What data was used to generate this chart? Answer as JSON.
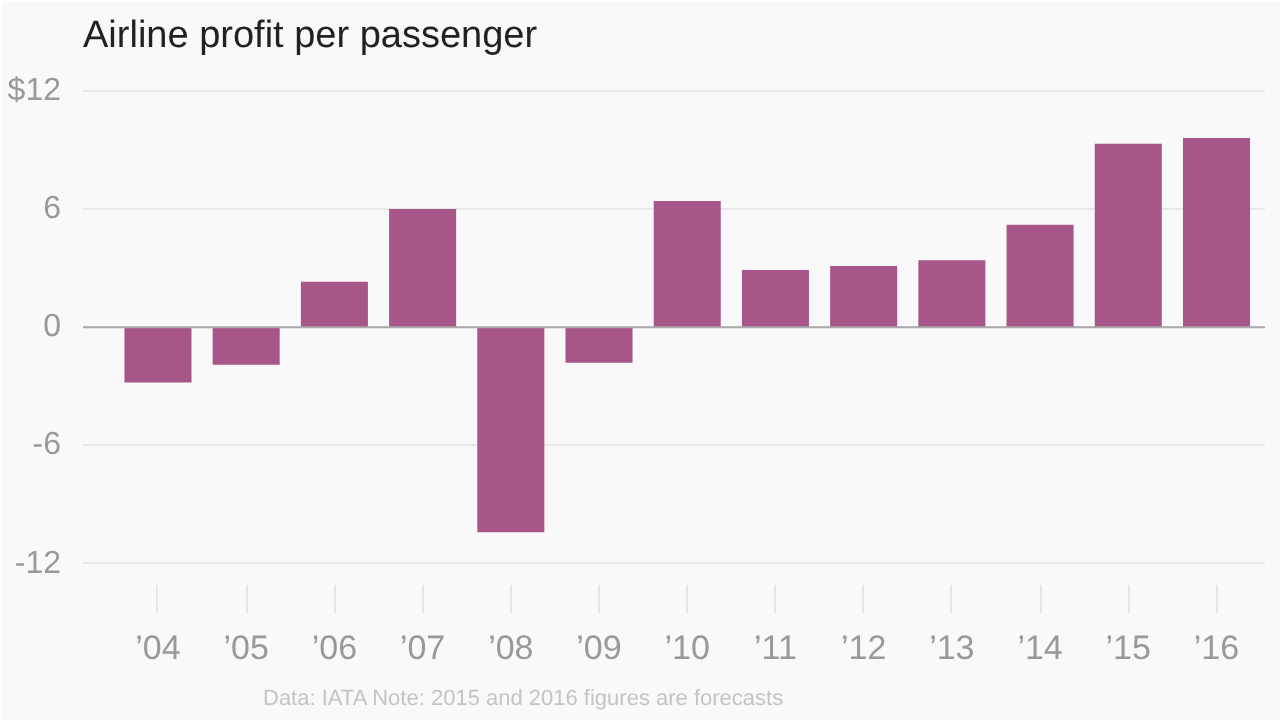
{
  "chart_data": {
    "type": "bar",
    "title": "Airline profit per passenger",
    "categories": [
      "’04",
      "’05",
      "’06",
      "’07",
      "’08",
      "’09",
      "’10",
      "’11",
      "’12",
      "’13",
      "’14",
      "’15",
      "’16"
    ],
    "values": [
      -2.8,
      -1.9,
      2.3,
      6.0,
      -10.4,
      -1.8,
      6.4,
      2.9,
      3.1,
      3.4,
      5.2,
      9.3,
      9.6
    ],
    "color": "#a8568a",
    "ylim": [
      -14.5,
      13.2
    ],
    "yticks": [
      {
        "value": 12,
        "label": "$12"
      },
      6,
      0,
      -6,
      -12
    ],
    "grid": "y",
    "annotations": [
      "Data: IATA Note: 2015 and 2016 figures are forecasts"
    ]
  }
}
